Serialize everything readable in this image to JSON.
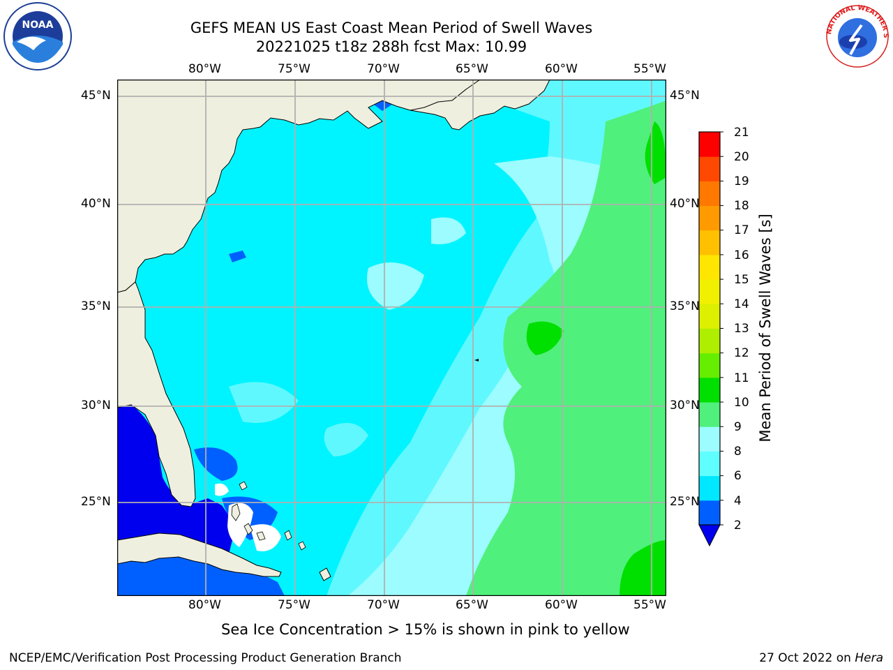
{
  "title": {
    "line1": "GEFS MEAN US East Coast Mean Period of Swell Waves",
    "line2": "20221025 t18z 288h fcst   Max: 10.99"
  },
  "logos": {
    "left": "NOAA",
    "right": "NATIONAL WEATHER SERVICE"
  },
  "map": {
    "lon_labels": [
      "80°W",
      "75°W",
      "70°W",
      "65°W",
      "60°W",
      "55°W"
    ],
    "lat_labels": [
      "45°N",
      "40°N",
      "35°N",
      "30°N",
      "25°N"
    ],
    "land_color": "#efefdf",
    "grid_color": "#b0b0b0"
  },
  "colorbar": {
    "label": "Mean Period of Swell Waves [s]",
    "ticks": [
      "2",
      "4",
      "6",
      "8",
      "9",
      "10",
      "11",
      "12",
      "13",
      "14",
      "15",
      "16",
      "17",
      "18",
      "19",
      "20",
      "21"
    ],
    "bins": [
      "#0060ff",
      "#00e8ff",
      "#60ffff",
      "#9cfcff",
      "#50f07c",
      "#00e000",
      "#66ee00",
      "#b0ee00",
      "#dcf000",
      "#f0f000",
      "#ffe600",
      "#ffc000",
      "#ff9a00",
      "#ff7800",
      "#ff4800",
      "#ff0000"
    ],
    "extend_color": "#0000ee"
  },
  "caption": "Sea Ice Concentration > 15% is shown in pink to yellow",
  "footer": {
    "left": "NCEP/EMC/Verification Post Processing Product Generation Branch",
    "right_date": "27 Oct 2022 on",
    "right_host": "Hera"
  }
}
